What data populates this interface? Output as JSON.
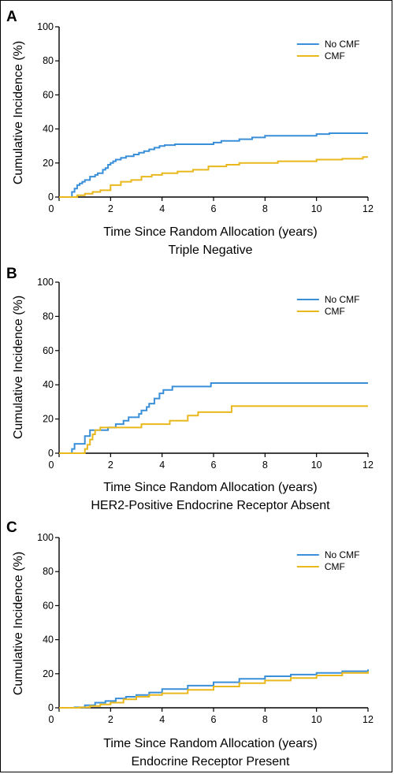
{
  "colors": {
    "no_cmf": "#3a8fd9",
    "cmf": "#e8b81c",
    "axis": "#000000"
  },
  "chart_data": [
    {
      "type": "line",
      "panel_label": "A",
      "subtitle": "Triple Negative",
      "xlabel": "Time Since Random Allocation (years)",
      "ylabel": "Cumulative Incidence (%)",
      "xlim": [
        0,
        12
      ],
      "ylim": [
        0,
        100
      ],
      "xticks": [
        0,
        2,
        4,
        6,
        8,
        10,
        12
      ],
      "yticks": [
        0,
        20,
        40,
        60,
        80,
        100
      ],
      "legend_position": "top-right",
      "step": true,
      "series": [
        {
          "name": "No CMF",
          "color": "#3a8fd9",
          "x": [
            0,
            0.5,
            0.6,
            0.7,
            0.8,
            0.9,
            1.0,
            1.2,
            1.4,
            1.5,
            1.7,
            1.8,
            1.9,
            2.0,
            2.1,
            2.2,
            2.4,
            2.6,
            2.9,
            3.1,
            3.3,
            3.5,
            3.7,
            3.9,
            4.1,
            4.5,
            6.0,
            6.3,
            6.9,
            7.0,
            7.5,
            8.0,
            9.0,
            10.0,
            10.5,
            12.0
          ],
          "y": [
            0,
            3,
            5,
            7,
            8,
            9,
            10,
            12,
            13,
            14,
            16,
            17,
            19,
            20,
            21,
            22,
            23,
            24,
            25,
            26,
            27,
            28,
            29,
            30,
            30.5,
            31,
            32,
            33,
            33,
            34,
            35,
            36,
            36,
            37,
            37.5,
            37.5
          ]
        },
        {
          "name": "CMF",
          "color": "#e8b81c",
          "x": [
            0,
            0.7,
            1.0,
            1.3,
            1.6,
            2.0,
            2.4,
            2.8,
            3.2,
            3.6,
            4.0,
            4.6,
            5.2,
            5.8,
            6.5,
            7.0,
            8.5,
            9.0,
            10.0,
            11.0,
            11.8,
            12.0
          ],
          "y": [
            0,
            1,
            2,
            3,
            4,
            7,
            9,
            10,
            12,
            13,
            14,
            15,
            16,
            18,
            19,
            20,
            21,
            21,
            22,
            22.5,
            23.5,
            23.5
          ]
        }
      ]
    },
    {
      "type": "line",
      "panel_label": "B",
      "subtitle": "HER2-Positive Endocrine Receptor Absent",
      "xlabel": "Time Since Random Allocation (years)",
      "ylabel": "Cumulative Incidence (%)",
      "xlim": [
        0,
        12
      ],
      "ylim": [
        0,
        100
      ],
      "xticks": [
        0,
        2,
        4,
        6,
        8,
        10,
        12
      ],
      "yticks": [
        0,
        20,
        40,
        60,
        80,
        100
      ],
      "legend_position": "top-right",
      "step": true,
      "series": [
        {
          "name": "No CMF",
          "color": "#3a8fd9",
          "x": [
            0,
            0.5,
            0.6,
            1.0,
            1.2,
            1.4,
            1.6,
            1.9,
            2.2,
            2.5,
            2.7,
            2.9,
            3.1,
            3.2,
            3.4,
            3.5,
            3.7,
            3.9,
            4.05,
            4.4,
            5.9,
            12.0
          ],
          "y": [
            0,
            2.5,
            5.5,
            10,
            13.5,
            13.5,
            13.5,
            15,
            17,
            19,
            21,
            21,
            23,
            25,
            27,
            29,
            32,
            35,
            37,
            39,
            41,
            41
          ]
        },
        {
          "name": "CMF",
          "color": "#e8b81c",
          "x": [
            0,
            1.0,
            1.1,
            1.2,
            1.3,
            1.4,
            1.6,
            3.0,
            3.2,
            4.3,
            5.0,
            5.4,
            6.7,
            12.0
          ],
          "y": [
            0,
            2.5,
            5,
            8,
            11,
            13.5,
            15,
            15,
            17,
            19,
            22,
            24,
            27.5,
            27.5
          ]
        }
      ]
    },
    {
      "type": "line",
      "panel_label": "C",
      "subtitle": "Endocrine Receptor Present",
      "xlabel": "Time Since Random Allocation (years)",
      "ylabel": "Cumulative Incidence (%)",
      "xlim": [
        0,
        12
      ],
      "ylim": [
        0,
        100
      ],
      "xticks": [
        0,
        2,
        4,
        6,
        8,
        10,
        12
      ],
      "yticks": [
        0,
        20,
        40,
        60,
        80,
        100
      ],
      "legend_position": "top-right",
      "step": true,
      "series": [
        {
          "name": "No CMF",
          "color": "#3a8fd9",
          "x": [
            0,
            0.6,
            1.0,
            1.4,
            1.8,
            2.2,
            2.6,
            3.0,
            3.5,
            4.0,
            5.0,
            6.0,
            7.0,
            8.0,
            9.0,
            10.0,
            11.0,
            12.0
          ],
          "y": [
            0,
            0.3,
            1.5,
            3,
            4,
            5.5,
            6.5,
            7.5,
            9,
            11,
            13,
            15,
            17,
            18.5,
            19.5,
            20.5,
            21.5,
            22.5
          ]
        },
        {
          "name": "CMF",
          "color": "#e8b81c",
          "x": [
            0,
            0.8,
            1.2,
            1.6,
            2.0,
            2.5,
            3.0,
            3.5,
            4.0,
            5.0,
            6.0,
            7.0,
            8.0,
            9.0,
            10.0,
            11.0,
            12.0
          ],
          "y": [
            0,
            0.3,
            1,
            2,
            3,
            5,
            6.5,
            7.5,
            8.5,
            10.5,
            12.5,
            14.5,
            16,
            17.5,
            19,
            20.5,
            21.5
          ]
        }
      ]
    }
  ]
}
